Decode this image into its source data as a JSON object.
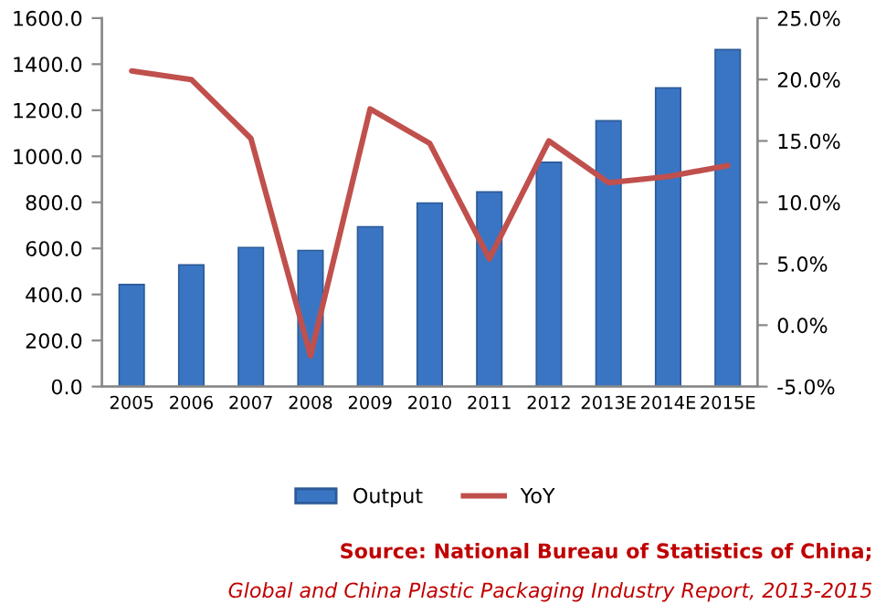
{
  "chart_data": {
    "type": "bar",
    "categories": [
      "2005",
      "2006",
      "2007",
      "2008",
      "2009",
      "2010",
      "2011",
      "2012",
      "2013E",
      "2014E",
      "2015E"
    ],
    "series": [
      {
        "name": "Output",
        "color": "#3a75c4",
        "values": [
          443,
          528,
          604,
          591,
          694,
          797,
          845,
          974,
          1154,
          1297,
          1463
        ]
      },
      {
        "name": "YoY",
        "type": "line",
        "axis": "y2",
        "color": "#c0504d",
        "values": [
          20.7,
          20.0,
          15.2,
          -2.5,
          17.6,
          14.8,
          5.4,
          15.0,
          11.6,
          12.1,
          13.0
        ]
      }
    ],
    "ylim": [
      0,
      1600
    ],
    "yticks": [
      {
        "value": 0,
        "label": "0.0"
      },
      {
        "value": 200,
        "label": "200.0"
      },
      {
        "value": 400,
        "label": "400.0"
      },
      {
        "value": 600,
        "label": "600.0"
      },
      {
        "value": 800,
        "label": "800.0"
      },
      {
        "value": 1000,
        "label": "1000.0"
      },
      {
        "value": 1200,
        "label": "1200.0"
      },
      {
        "value": 1400,
        "label": "1400.0"
      },
      {
        "value": 1600,
        "label": "1600.0"
      }
    ],
    "y2lim": [
      -5,
      25
    ],
    "y2ticks": [
      {
        "value": -5,
        "label": "-5.0%"
      },
      {
        "value": 0,
        "label": "0.0%"
      },
      {
        "value": 5,
        "label": "5.0%"
      },
      {
        "value": 10,
        "label": "10.0%"
      },
      {
        "value": 15,
        "label": "15.0%"
      },
      {
        "value": 20,
        "label": "20.0%"
      },
      {
        "value": 25,
        "label": "25.0%"
      }
    ],
    "legend": "bottom",
    "grid": false,
    "annotations": [
      "Source: National Bureau of Statistics of China;",
      "Global and China Plastic Packaging Industry Report, 2013-2015"
    ]
  }
}
